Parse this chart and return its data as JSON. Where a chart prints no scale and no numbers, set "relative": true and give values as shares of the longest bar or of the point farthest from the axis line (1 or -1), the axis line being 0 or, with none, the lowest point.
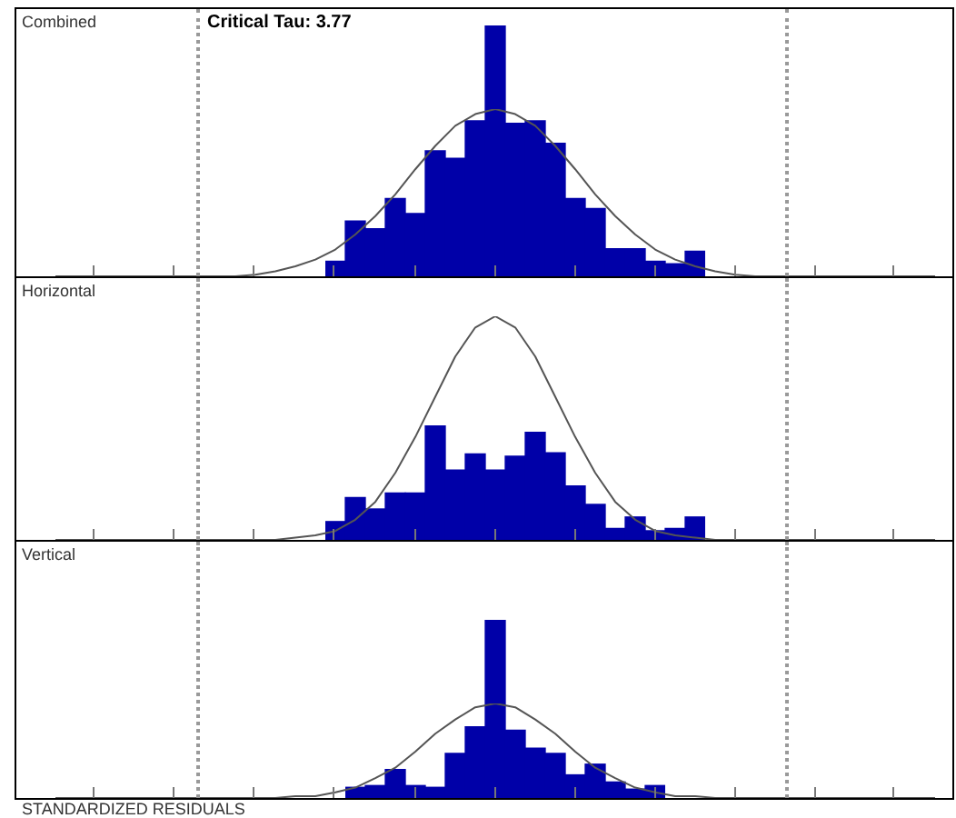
{
  "chart_data": [
    {
      "type": "bar",
      "relative": true,
      "color": "#0000a8",
      "categories": [
        null,
        null,
        null,
        null,
        null,
        null,
        null,
        null,
        null,
        null,
        null,
        null,
        null,
        null,
        null,
        null,
        null,
        null,
        null
      ],
      "values": [
        0.06,
        0.22,
        0.19,
        0.31,
        0.25,
        0.5,
        0.47,
        0.62,
        1,
        0.61,
        0.62,
        0.53,
        0.31,
        0.27,
        0.11,
        0.11,
        0.06,
        0.05,
        0.1
      ]
    },
    {
      "type": "line",
      "title": "Combined",
      "annotations": [
        "Critical Tau: 3.77"
      ],
      "relative": true,
      "color": "#555555",
      "categories": [
        null,
        null,
        null,
        null,
        null,
        null,
        null,
        null,
        null,
        null,
        null,
        null,
        null,
        null,
        null,
        null,
        null,
        null,
        null,
        null,
        null,
        null,
        null,
        null,
        null,
        null,
        null,
        null,
        null,
        null,
        null,
        null,
        null,
        null,
        null,
        null,
        null,
        null,
        null,
        null,
        null,
        null,
        null,
        null,
        null
      ],
      "values": [
        0,
        0,
        0,
        0,
        0,
        0,
        0,
        0,
        0,
        0,
        0.01,
        0.03,
        0.06,
        0.1,
        0.16,
        0.25,
        0.36,
        0.49,
        0.64,
        0.78,
        0.9,
        0.97,
        1,
        0.97,
        0.9,
        0.78,
        0.64,
        0.49,
        0.36,
        0.25,
        0.16,
        0.1,
        0.06,
        0.03,
        0.01,
        0,
        0,
        0,
        0,
        0,
        0,
        0,
        0,
        0,
        0
      ]
    },
    {
      "type": "bar",
      "relative": true,
      "color": "#0000a8",
      "categories": [
        null,
        null,
        null,
        null,
        null,
        null,
        null,
        null,
        null,
        null,
        null,
        null,
        null,
        null,
        null,
        null,
        null,
        null,
        null
      ],
      "values": [
        0.16,
        0.37,
        0.27,
        0.41,
        0.41,
        1,
        0.61,
        0.75,
        0.61,
        0.73,
        0.94,
        0.76,
        0.47,
        0.31,
        0.1,
        0.2,
        0.08,
        0.1,
        0.2
      ]
    },
    {
      "type": "line",
      "title": "Horizontal",
      "relative": true,
      "color": "#555555",
      "categories": [
        null,
        null,
        null,
        null,
        null,
        null,
        null,
        null,
        null,
        null,
        null,
        null,
        null,
        null,
        null,
        null,
        null,
        null,
        null,
        null,
        null,
        null,
        null,
        null,
        null,
        null,
        null,
        null,
        null,
        null,
        null,
        null,
        null,
        null,
        null,
        null,
        null,
        null,
        null,
        null,
        null,
        null,
        null,
        null,
        null
      ],
      "values": [
        0,
        0,
        0,
        0,
        0,
        0,
        0,
        0,
        0,
        0,
        0,
        0,
        0.01,
        0.02,
        0.04,
        0.09,
        0.17,
        0.3,
        0.46,
        0.64,
        0.82,
        0.95,
        1,
        0.95,
        0.82,
        0.64,
        0.46,
        0.3,
        0.17,
        0.09,
        0.04,
        0.02,
        0.01,
        0,
        0,
        0,
        0,
        0,
        0,
        0,
        0,
        0,
        0,
        0,
        0
      ]
    },
    {
      "type": "bar",
      "relative": true,
      "color": "#0000a8",
      "categories": [
        null,
        null,
        null,
        null,
        null,
        null,
        null,
        null,
        null,
        null,
        null,
        null,
        null,
        null,
        null,
        null
      ],
      "values": [
        0.06,
        0.07,
        0.16,
        0.07,
        0.06,
        0.25,
        0.4,
        1,
        0.38,
        0.28,
        0.25,
        0.13,
        0.19,
        0.09,
        0.05,
        0.07
      ]
    },
    {
      "type": "line",
      "title": "Vertical",
      "xlabel": "STANDARDIZED RESIDUALS",
      "relative": true,
      "color": "#555555",
      "categories": [
        null,
        null,
        null,
        null,
        null,
        null,
        null,
        null,
        null,
        null,
        null,
        null,
        null,
        null,
        null,
        null,
        null,
        null,
        null,
        null,
        null,
        null,
        null,
        null,
        null,
        null,
        null,
        null,
        null,
        null,
        null,
        null,
        null,
        null,
        null,
        null,
        null,
        null,
        null,
        null,
        null,
        null,
        null,
        null,
        null
      ],
      "values": [
        0,
        0,
        0,
        0,
        0,
        0,
        0,
        0,
        0,
        0,
        0,
        0,
        0.02,
        0.02,
        0.06,
        0.11,
        0.21,
        0.32,
        0.49,
        0.68,
        0.83,
        0.96,
        1,
        0.96,
        0.83,
        0.68,
        0.49,
        0.32,
        0.21,
        0.11,
        0.06,
        0.02,
        0.02,
        0,
        0,
        0,
        0,
        0,
        0,
        0,
        0,
        0,
        0,
        0,
        0
      ]
    }
  ]
}
